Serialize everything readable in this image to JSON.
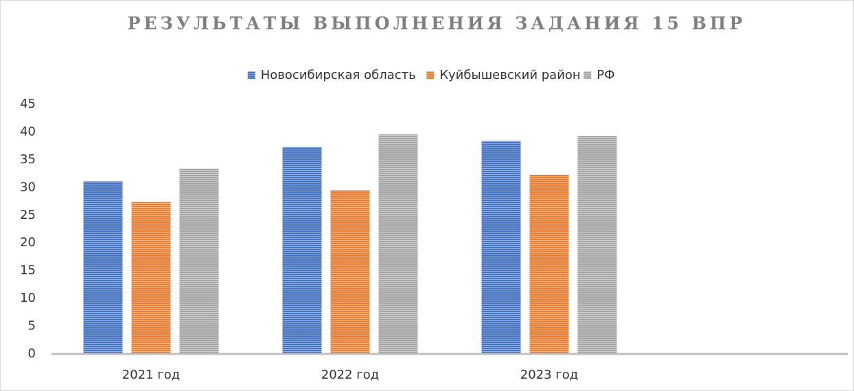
{
  "chart_data": {
    "type": "bar",
    "title": "РЕЗУЛЬТАТЫ ВЫПОЛНЕНИЯ ЗАДАНИЯ 15 ВПР",
    "categories": [
      "2021 год",
      "2022 год",
      "2023 год",
      null
    ],
    "series": [
      {
        "name": "Новосибирская область",
        "color": "#4472c4",
        "values": [
          31.1,
          37.3,
          38.4,
          null
        ]
      },
      {
        "name": "Куйбышевский район",
        "color": "#ed7d31",
        "values": [
          27.4,
          29.5,
          32.3,
          null
        ]
      },
      {
        "name": "РФ",
        "color": "#a5a5a5",
        "values": [
          33.4,
          39.6,
          39.3,
          null
        ]
      }
    ],
    "ylim": [
      0,
      45
    ],
    "yticks": [
      0,
      5,
      10,
      15,
      20,
      25,
      30,
      35,
      40,
      45
    ],
    "grid": false,
    "legend": "top"
  }
}
